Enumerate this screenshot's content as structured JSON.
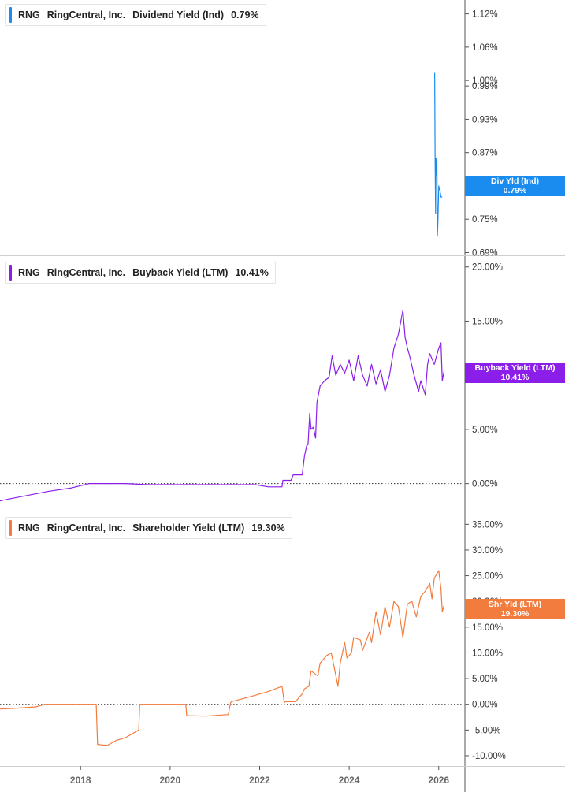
{
  "chart_data": [
    {
      "type": "line",
      "ticker": "RNG",
      "company": "RingCentral, Inc.",
      "metric": "Dividend Yield (Ind)",
      "current_value": "0.79%",
      "flag_label": "Div Yld (Ind)",
      "color": "#1a8cf0",
      "y_ticks": [
        "1.12%",
        "1.06%",
        "1.00%",
        "0.99%",
        "0.93%",
        "0.87%",
        "0.81%",
        "0.75%",
        "0.69%"
      ],
      "y_tick_values": [
        1.12,
        1.06,
        1.0,
        0.99,
        0.93,
        0.87,
        0.81,
        0.75,
        0.69
      ],
      "ylim": [
        0.685,
        1.145
      ],
      "grid": false,
      "series": [
        {
          "x": [
            2025.91,
            2025.92,
            2025.93,
            2025.94,
            2025.95,
            2025.96,
            2025.97,
            2025.98,
            2026.0,
            2026.03,
            2026.05,
            2026.08
          ],
          "y": [
            1.015,
            0.85,
            0.76,
            0.86,
            0.83,
            0.85,
            0.72,
            0.74,
            0.81,
            0.8,
            0.79,
            0.79
          ]
        }
      ]
    },
    {
      "type": "line",
      "ticker": "RNG",
      "company": "RingCentral, Inc.",
      "metric": "Buyback Yield (LTM)",
      "current_value": "10.41%",
      "flag_label": "Buyback Yield (LTM)",
      "color": "#8c1eea",
      "y_ticks": [
        "20.00%",
        "15.00%",
        "10.00%",
        "5.00%",
        "0.00%"
      ],
      "y_tick_values": [
        20,
        15,
        10,
        5,
        0
      ],
      "ylim": [
        -2.5,
        21.0
      ],
      "zero_line": true,
      "grid": false,
      "series": [
        {
          "x": [
            2016.0,
            2016.3,
            2016.8,
            2017.3,
            2017.8,
            2018.2,
            2018.6,
            2019.0,
            2019.5,
            2020.0,
            2020.5,
            2021.0,
            2021.5,
            2021.9,
            2022.2,
            2022.5,
            2022.52,
            2022.7,
            2022.75,
            2022.95,
            2023.0,
            2023.05,
            2023.08,
            2023.12,
            2023.15,
            2023.2,
            2023.25,
            2023.28,
            2023.35,
            2023.45,
            2023.55,
            2023.62,
            2023.7,
            2023.8,
            2023.9,
            2024.0,
            2024.1,
            2024.2,
            2024.3,
            2024.4,
            2024.5,
            2024.6,
            2024.7,
            2024.8,
            2024.9,
            2025.0,
            2025.1,
            2025.2,
            2025.25,
            2025.3,
            2025.35,
            2025.45,
            2025.55,
            2025.6,
            2025.7,
            2025.75,
            2025.8,
            2025.9,
            2026.0,
            2026.05,
            2026.08,
            2026.12
          ],
          "y": [
            -1.8,
            -1.5,
            -1.1,
            -0.7,
            -0.4,
            0.0,
            0.0,
            0.0,
            -0.1,
            -0.1,
            -0.1,
            -0.1,
            -0.1,
            -0.1,
            -0.3,
            -0.3,
            0.3,
            0.3,
            0.8,
            0.8,
            2.5,
            3.5,
            3.6,
            6.5,
            5.0,
            5.2,
            4.2,
            7.5,
            9.0,
            9.5,
            9.8,
            11.8,
            10.0,
            11.0,
            10.2,
            11.4,
            9.5,
            11.8,
            10.0,
            9.0,
            11.0,
            9.2,
            10.5,
            8.5,
            10.0,
            12.5,
            13.8,
            16.0,
            13.5,
            12.5,
            11.8,
            10.0,
            8.5,
            9.5,
            8.2,
            11.0,
            12.0,
            11.0,
            12.5,
            13.0,
            9.5,
            10.41
          ]
        }
      ]
    },
    {
      "type": "line",
      "ticker": "RNG",
      "company": "RingCentral, Inc.",
      "metric": "Shareholder Yield (LTM)",
      "current_value": "19.30%",
      "flag_label": "Shr Yld (LTM)",
      "color": "#f27c3d",
      "y_ticks": [
        "35.00%",
        "30.00%",
        "25.00%",
        "20.00%",
        "15.00%",
        "10.00%",
        "5.00%",
        "0.00%",
        "-5.00%",
        "-10.00%"
      ],
      "y_tick_values": [
        35,
        30,
        25,
        20,
        15,
        10,
        5,
        0,
        -5,
        -10
      ],
      "ylim": [
        -12.0,
        37.5
      ],
      "zero_line": true,
      "grid": false,
      "series": [
        {
          "x": [
            2016.0,
            2016.5,
            2017.0,
            2017.2,
            2018.0,
            2018.35,
            2018.38,
            2018.6,
            2018.8,
            2019.0,
            2019.3,
            2019.32,
            2020.0,
            2020.35,
            2020.37,
            2020.8,
            2021.3,
            2021.35,
            2021.37,
            2021.8,
            2022.2,
            2022.35,
            2022.5,
            2022.55,
            2022.57,
            2022.8,
            2022.95,
            2023.0,
            2023.1,
            2023.15,
            2023.3,
            2023.35,
            2023.5,
            2023.6,
            2023.75,
            2023.8,
            2023.9,
            2023.95,
            2024.05,
            2024.1,
            2024.25,
            2024.3,
            2024.45,
            2024.5,
            2024.6,
            2024.7,
            2024.8,
            2024.9,
            2025.0,
            2025.1,
            2025.2,
            2025.3,
            2025.4,
            2025.5,
            2025.6,
            2025.7,
            2025.8,
            2025.85,
            2025.9,
            2026.0,
            2026.05,
            2026.08,
            2026.12
          ],
          "y": [
            -1.0,
            -0.8,
            -0.5,
            0.0,
            0.0,
            0.0,
            -7.8,
            -8.0,
            -7.0,
            -6.5,
            -5.0,
            0.0,
            0.0,
            0.0,
            -2.2,
            -2.3,
            -2.0,
            0.3,
            0.5,
            1.5,
            2.5,
            3.0,
            3.5,
            0.3,
            0.5,
            0.5,
            2.0,
            3.0,
            3.5,
            6.5,
            5.5,
            8.0,
            9.5,
            10.0,
            3.5,
            8.0,
            12.0,
            9.0,
            10.0,
            13.0,
            12.5,
            10.5,
            14.0,
            12.0,
            18.0,
            13.5,
            19.0,
            15.0,
            20.0,
            19.0,
            13.0,
            19.5,
            20.0,
            17.0,
            21.0,
            22.0,
            23.5,
            20.5,
            24.5,
            26.0,
            22.5,
            18.0,
            19.3
          ]
        }
      ]
    }
  ],
  "x_axis": {
    "ticks": [
      "2018",
      "2020",
      "2022",
      "2024",
      "2026"
    ],
    "tick_values": [
      2018,
      2020,
      2022,
      2024,
      2026
    ],
    "xlim": [
      2016.2,
      2026.55
    ]
  }
}
